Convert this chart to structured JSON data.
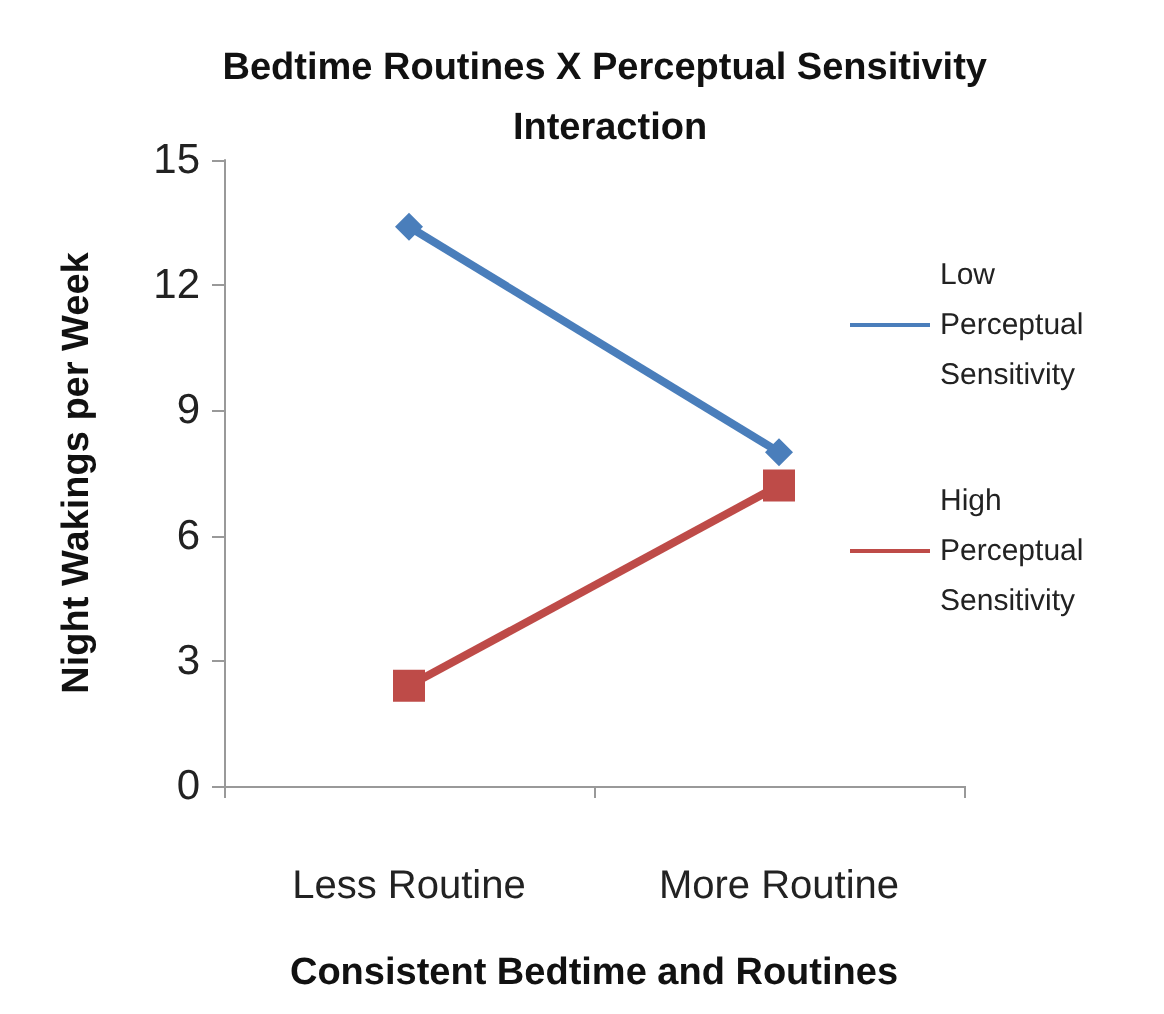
{
  "chart_data": {
    "type": "line",
    "title": "Bedtime Routines X Perceptual Sensitivity Interaction",
    "xlabel": "Consistent Bedtime and Routines",
    "ylabel": "Night Wakings per Week",
    "categories": [
      "Less Routine",
      "More Routine"
    ],
    "series": [
      {
        "name": "Low Perceptual Sensitivity",
        "color": "#4a7ebb",
        "marker": "diamond",
        "values": [
          13.4,
          8.0
        ]
      },
      {
        "name": "High Perceptual Sensitivity",
        "color": "#be4b48",
        "marker": "square",
        "values": [
          2.4,
          7.2
        ]
      }
    ],
    "ylim": [
      0,
      15
    ],
    "yticks": [
      0,
      3,
      6,
      9,
      12,
      15
    ],
    "grid": false,
    "legend": "right"
  }
}
